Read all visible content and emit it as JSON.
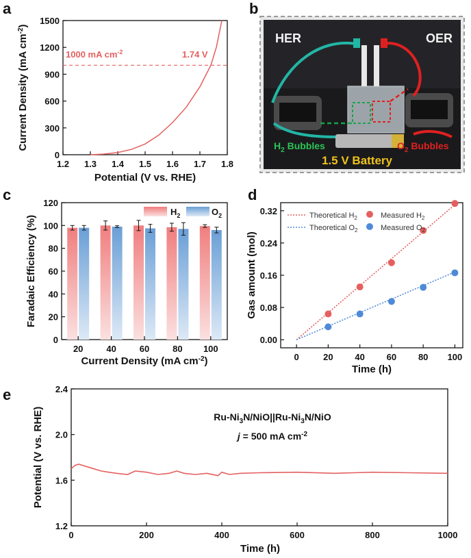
{
  "figure": {
    "panel_letters": {
      "a": "a",
      "b": "b",
      "c": "c",
      "d": "d",
      "e": "e"
    },
    "colors": {
      "red_series": "#e4605f",
      "blue_series": "#4f8ad8",
      "bar_red": "#f07e7e",
      "bar_blue": "#6a9fd6"
    }
  },
  "chart_data": [
    {
      "id": "a",
      "type": "line",
      "xlabel": "Potential (V vs. RHE)",
      "ylabel": "Current Density (mA cm-2)",
      "xlim": [
        1.2,
        1.8
      ],
      "ylim": [
        0,
        1500
      ],
      "xticks": [
        "1.2",
        "1.3",
        "1.4",
        "1.5",
        "1.6",
        "1.7",
        "1.8"
      ],
      "yticks": [
        "0",
        "300",
        "600",
        "900",
        "1200",
        "1500"
      ],
      "series": [
        {
          "color": "#e4605f",
          "x": [
            1.3,
            1.35,
            1.4,
            1.45,
            1.5,
            1.55,
            1.6,
            1.65,
            1.7,
            1.72,
            1.74,
            1.76,
            1.78
          ],
          "y": [
            0,
            8,
            25,
            60,
            120,
            220,
            360,
            530,
            760,
            880,
            1000,
            1200,
            1500
          ]
        }
      ],
      "annotations": {
        "left": "1000 mA cm",
        "left_sup": "-2",
        "right": "1.74 V",
        "hline_y": 1000
      }
    },
    {
      "id": "c",
      "type": "bar",
      "xlabel": "Current Density (mA cm",
      "xlabel_sup": "-2",
      "xlabel_end": ")",
      "ylabel": "Faradaic Efficiency (%)",
      "ylim": [
        0,
        120
      ],
      "yticks": [
        "0",
        "20",
        "40",
        "60",
        "80",
        "100",
        "120"
      ],
      "categories": [
        "20",
        "40",
        "60",
        "80",
        "100"
      ],
      "series": [
        {
          "name": "H",
          "sub": "2",
          "color": "#f07e7e",
          "values": [
            98,
            100,
            100,
            98.5,
            99.5
          ],
          "errors": [
            2,
            4,
            4.5,
            3.5,
            1.2
          ]
        },
        {
          "name": "O",
          "sub": "2",
          "color": "#6a9fd6",
          "values": [
            98,
            99,
            97.5,
            97,
            96
          ],
          "errors": [
            2,
            0.8,
            3.5,
            5.5,
            2.5
          ]
        }
      ]
    },
    {
      "id": "d",
      "type": "scatter",
      "xlabel": "Time (h)",
      "ylabel": "Gas amount (mol)",
      "xlim": [
        -10,
        105
      ],
      "ylim": [
        -0.02,
        0.34
      ],
      "xticks": [
        "0",
        "20",
        "40",
        "60",
        "80",
        "100"
      ],
      "yticks": [
        "0.00",
        "0.08",
        "0.16",
        "0.24",
        "0.32"
      ],
      "series": [
        {
          "legend": "Theoretical H",
          "sub": "2",
          "kind": "line",
          "color": "#e4605f",
          "x": [
            0,
            100
          ],
          "y": [
            0,
            0.335
          ]
        },
        {
          "legend": "Theoretical O",
          "sub": "2",
          "kind": "line",
          "color": "#4f8ad8",
          "x": [
            0,
            100
          ],
          "y": [
            0,
            0.168
          ]
        },
        {
          "legend": "Measured H",
          "sub": "2",
          "kind": "points",
          "color": "#e4605f",
          "x": [
            20,
            40,
            60,
            80,
            100
          ],
          "y": [
            0.064,
            0.131,
            0.191,
            0.271,
            0.338
          ]
        },
        {
          "legend": "Measured O",
          "sub": "2",
          "kind": "points",
          "color": "#4f8ad8",
          "x": [
            20,
            40,
            60,
            80,
            100
          ],
          "y": [
            0.032,
            0.064,
            0.095,
            0.13,
            0.166
          ]
        }
      ]
    },
    {
      "id": "e",
      "type": "line",
      "xlabel": "Time (h)",
      "ylabel": "Potential (V vs. RHE)",
      "xlim": [
        0,
        1000
      ],
      "ylim": [
        1.2,
        2.4
      ],
      "xticks": [
        "0",
        "200",
        "400",
        "600",
        "800",
        "1000"
      ],
      "yticks": [
        "1.2",
        "1.6",
        "2.0",
        "2.4"
      ],
      "annotation_line1": {
        "p1": "Ru-Ni",
        "s1": "3",
        "p2": "N/NiO||Ru-Ni",
        "s2": "3",
        "p3": "N/NiO"
      },
      "annotation_line2": {
        "j": "j",
        "rest": " = 500 mA cm",
        "sup": "-2"
      },
      "series": [
        {
          "color": "#e4605f",
          "x": [
            0,
            10,
            20,
            40,
            60,
            80,
            100,
            120,
            150,
            170,
            200,
            230,
            260,
            280,
            300,
            330,
            360,
            390,
            400,
            420,
            450,
            500,
            600,
            700,
            800,
            900,
            1000
          ],
          "y": [
            1.7,
            1.73,
            1.74,
            1.72,
            1.7,
            1.68,
            1.67,
            1.66,
            1.65,
            1.68,
            1.67,
            1.65,
            1.66,
            1.68,
            1.66,
            1.65,
            1.66,
            1.64,
            1.67,
            1.65,
            1.66,
            1.665,
            1.67,
            1.66,
            1.67,
            1.665,
            1.66
          ]
        }
      ]
    }
  ],
  "photo_b": {
    "her_label": "HER",
    "oer_label": "OER",
    "h2_bubbles": "H",
    "h2_sub": "2",
    "h2_rest": " Bubbles",
    "o2_bubbles": "O",
    "o2_sub": "2",
    "o2_rest": " Bubbles",
    "battery_label": "1.5 V Battery"
  }
}
